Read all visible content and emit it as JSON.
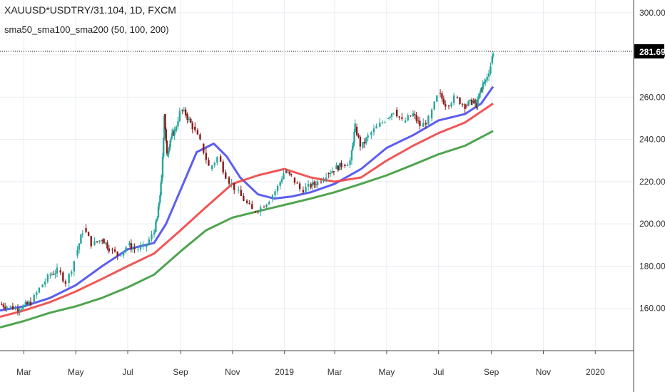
{
  "legend": {
    "title": "XAUUSD*USDTRY/31.104, 1D, FXCM",
    "indicator": "sma50_sma100_sma200 (50, 100, 200)"
  },
  "price_label": "281.69",
  "colors": {
    "up": "#26a69a",
    "down": "#8b1a1a",
    "sma50": "#4a4cf0",
    "sma100": "#ee4444",
    "sma200": "#3c9a3c",
    "grid": "#e8edf3",
    "axis_text": "#333333",
    "price_tag": "#000000"
  },
  "chart_data": {
    "type": "line",
    "title": "",
    "xlabel": "",
    "ylabel": "",
    "ylim": [
      140,
      306
    ],
    "xlim": [
      "2018-02-01",
      "2020-02-15"
    ],
    "y_ticks": [
      "160.00",
      "180.00",
      "200.00",
      "220.00",
      "240.00",
      "260.00",
      "280.00",
      "300.00"
    ],
    "x_ticks": [
      {
        "label": "Mar",
        "date": "2018-03-01"
      },
      {
        "label": "May",
        "date": "2018-05-01"
      },
      {
        "label": "Jul",
        "date": "2018-07-01"
      },
      {
        "label": "Sep",
        "date": "2018-09-01"
      },
      {
        "label": "Nov",
        "date": "2018-11-01"
      },
      {
        "label": "2019",
        "date": "2019-01-01"
      },
      {
        "label": "Mar",
        "date": "2019-03-01"
      },
      {
        "label": "May",
        "date": "2019-05-01"
      },
      {
        "label": "Jul",
        "date": "2019-07-01"
      },
      {
        "label": "Sep",
        "date": "2019-09-01"
      },
      {
        "label": "Nov",
        "date": "2019-11-01"
      },
      {
        "label": "2020",
        "date": "2020-01-01"
      }
    ],
    "last_price": 281.69,
    "price_series": {
      "name": "XAUUSD*USDTRY/31.104",
      "x": [
        "2018-02-01",
        "2018-02-10",
        "2018-02-20",
        "2018-03-01",
        "2018-03-10",
        "2018-03-20",
        "2018-04-01",
        "2018-04-10",
        "2018-04-20",
        "2018-05-01",
        "2018-05-10",
        "2018-05-20",
        "2018-06-01",
        "2018-06-10",
        "2018-06-20",
        "2018-07-01",
        "2018-07-10",
        "2018-07-20",
        "2018-08-01",
        "2018-08-05",
        "2018-08-10",
        "2018-08-13",
        "2018-08-16",
        "2018-08-20",
        "2018-08-25",
        "2018-09-01",
        "2018-09-07",
        "2018-09-15",
        "2018-09-25",
        "2018-10-05",
        "2018-10-15",
        "2018-10-25",
        "2018-11-05",
        "2018-11-15",
        "2018-11-25",
        "2018-12-05",
        "2018-12-15",
        "2018-12-25",
        "2019-01-01",
        "2019-01-10",
        "2019-01-20",
        "2019-02-01",
        "2019-02-10",
        "2019-02-20",
        "2019-03-01",
        "2019-03-10",
        "2019-03-20",
        "2019-03-25",
        "2019-04-01",
        "2019-04-10",
        "2019-04-20",
        "2019-05-01",
        "2019-05-10",
        "2019-05-20",
        "2019-06-01",
        "2019-06-10",
        "2019-06-20",
        "2019-07-01",
        "2019-07-10",
        "2019-07-20",
        "2019-08-01",
        "2019-08-10",
        "2019-08-15",
        "2019-08-20",
        "2019-08-25",
        "2019-09-01",
        "2019-09-03"
      ],
      "values": [
        162,
        161,
        160,
        161,
        163,
        170,
        176,
        178,
        172,
        185,
        198,
        190,
        193,
        188,
        185,
        190,
        188,
        189,
        196,
        203,
        222,
        252,
        232,
        240,
        244,
        254,
        252,
        246,
        238,
        226,
        232,
        222,
        216,
        211,
        206,
        208,
        212,
        218,
        225,
        222,
        216,
        218,
        220,
        224,
        226,
        228,
        230,
        246,
        236,
        242,
        246,
        250,
        254,
        248,
        252,
        246,
        250,
        262,
        256,
        260,
        256,
        258,
        256,
        264,
        268,
        276,
        281.69
      ]
    },
    "series": [
      {
        "name": "sma50",
        "x": [
          "2018-02-01",
          "2018-03-01",
          "2018-04-01",
          "2018-05-01",
          "2018-06-01",
          "2018-07-01",
          "2018-08-01",
          "2018-08-15",
          "2018-09-01",
          "2018-09-20",
          "2018-10-10",
          "2018-10-25",
          "2018-11-10",
          "2018-12-01",
          "2018-12-20",
          "2019-01-10",
          "2019-02-01",
          "2019-03-01",
          "2019-04-01",
          "2019-05-01",
          "2019-06-01",
          "2019-07-01",
          "2019-08-01",
          "2019-08-20",
          "2019-09-03"
        ],
        "values": [
          159,
          161,
          165,
          171,
          180,
          188,
          191,
          200,
          216,
          234,
          238,
          232,
          222,
          214,
          212,
          213,
          215,
          219,
          226,
          236,
          242,
          249,
          252,
          257,
          265
        ]
      },
      {
        "name": "sma100",
        "x": [
          "2018-02-01",
          "2018-03-01",
          "2018-04-01",
          "2018-05-01",
          "2018-06-01",
          "2018-07-01",
          "2018-08-01",
          "2018-09-01",
          "2018-10-01",
          "2018-11-01",
          "2018-12-01",
          "2019-01-01",
          "2019-02-01",
          "2019-03-01",
          "2019-04-01",
          "2019-05-01",
          "2019-06-01",
          "2019-07-01",
          "2019-08-01",
          "2019-09-03"
        ],
        "values": [
          156,
          159,
          163,
          168,
          174,
          180,
          186,
          197,
          208,
          219,
          223,
          226,
          222,
          220,
          222,
          230,
          237,
          243,
          248,
          257
        ]
      },
      {
        "name": "sma200",
        "x": [
          "2018-02-01",
          "2018-03-01",
          "2018-04-01",
          "2018-05-01",
          "2018-06-01",
          "2018-07-01",
          "2018-08-01",
          "2018-09-01",
          "2018-10-01",
          "2018-11-01",
          "2018-12-01",
          "2019-01-01",
          "2019-02-01",
          "2019-03-01",
          "2019-04-01",
          "2019-05-01",
          "2019-06-01",
          "2019-07-01",
          "2019-08-01",
          "2019-09-03"
        ],
        "values": [
          151,
          154,
          158,
          161,
          165,
          170,
          176,
          187,
          197,
          203,
          206,
          209,
          212,
          215,
          219,
          223,
          228,
          233,
          237,
          244
        ]
      }
    ]
  }
}
